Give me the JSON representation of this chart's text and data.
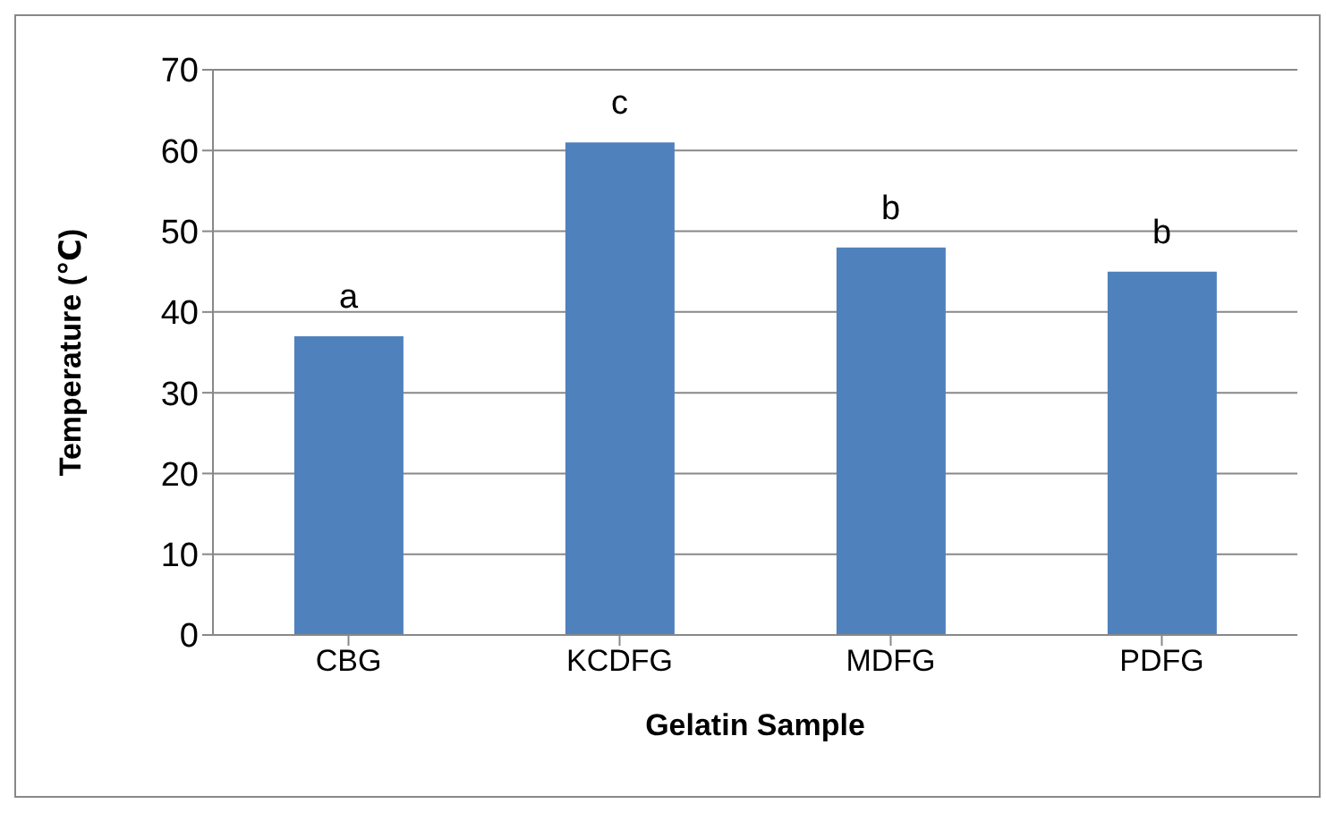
{
  "chart_data": {
    "type": "bar",
    "xlabel": "Gelatin Sample",
    "ylabel": "Temperature (℃)",
    "categories": [
      "CBG",
      "KCDFG",
      "MDFG",
      "PDFG"
    ],
    "values": [
      37,
      61,
      48,
      45
    ],
    "color": "#4f81bd",
    "ylim": [
      0,
      70
    ],
    "yticks": [
      0,
      10,
      20,
      30,
      40,
      50,
      60,
      70
    ],
    "grid": "y",
    "annotations": [
      {
        "text": "a",
        "x": "CBG",
        "y": 37
      },
      {
        "text": "c",
        "x": "KCDFG",
        "y": 61
      },
      {
        "text": "b",
        "x": "MDFG",
        "y": 48
      },
      {
        "text": "b",
        "x": "PDFG",
        "y": 45
      }
    ]
  }
}
